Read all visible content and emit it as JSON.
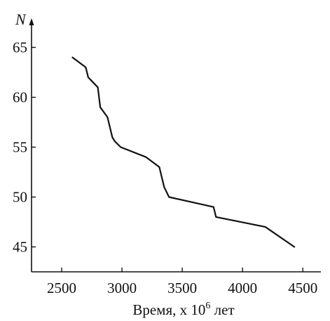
{
  "chart_data": {
    "type": "line",
    "title": "",
    "ylabel": "N",
    "xlabel_main": "Время, х 10",
    "xlabel_superscript": "6",
    "xlabel_suffix": " лет",
    "xlim": [
      2250,
      4650
    ],
    "ylim": [
      42.5,
      67.5
    ],
    "grid": false,
    "legend": "none",
    "line_color": "#111111",
    "x_ticks": [
      2500,
      3000,
      3500,
      4000,
      4500
    ],
    "y_ticks": [
      45,
      50,
      55,
      60,
      65
    ],
    "x_tick_labels": [
      "2500",
      "3000",
      "3500",
      "4000",
      "4500"
    ],
    "y_tick_labels": [
      "45",
      "50",
      "55",
      "60",
      "65"
    ],
    "series": [
      {
        "x": [
          2590,
          2700,
          2720,
          2800,
          2820,
          2880,
          2920,
          2940,
          2990,
          3200,
          3310,
          3350,
          3390,
          3760,
          3780,
          4190,
          4430
        ],
        "y": [
          64,
          63,
          62,
          61,
          59,
          58,
          56,
          55.6,
          55,
          54,
          53,
          51,
          50,
          49,
          48,
          47,
          45
        ]
      }
    ]
  }
}
